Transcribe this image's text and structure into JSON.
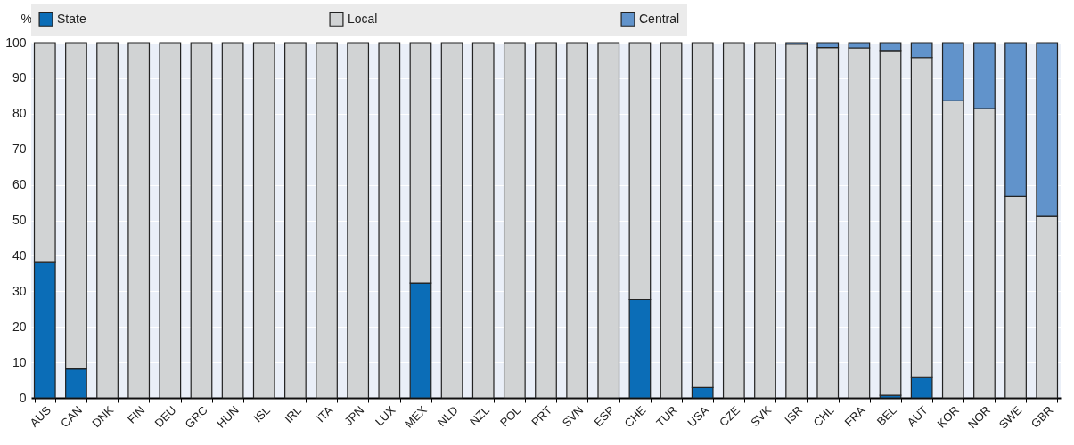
{
  "chart_data": {
    "type": "bar",
    "stacked": true,
    "ylabel": "%",
    "categories": [
      "AUS",
      "CAN",
      "DNK",
      "FIN",
      "DEU",
      "GRC",
      "HUN",
      "ISL",
      "IRL",
      "ITA",
      "JPN",
      "LUX",
      "MEX",
      "NLD",
      "NZL",
      "POL",
      "PRT",
      "SVN",
      "ESP",
      "CHE",
      "TUR",
      "USA",
      "CZE",
      "SVK",
      "ISR",
      "CHL",
      "FRA",
      "BEL",
      "AUT",
      "KOR",
      "NOR",
      "SWE",
      "GBR"
    ],
    "series": [
      {
        "name": "State",
        "color": "#0b6db7",
        "values": [
          38.3,
          8.1,
          null,
          null,
          null,
          null,
          null,
          null,
          null,
          null,
          null,
          null,
          32.3,
          null,
          null,
          null,
          null,
          null,
          null,
          27.7,
          null,
          2.9,
          null,
          null,
          null,
          null,
          null,
          0.7,
          5.7,
          null,
          null,
          null,
          null
        ]
      },
      {
        "name": "Local",
        "color": "#d1d3d4",
        "values": [
          61.7,
          91.9,
          100,
          100,
          100,
          100,
          100,
          100,
          100,
          100,
          100,
          100,
          67.7,
          100,
          100,
          100,
          100,
          100,
          100,
          72.3,
          100,
          97.1,
          100,
          100,
          99.6,
          98.6,
          98.5,
          97.1,
          90.1,
          83.6,
          81.4,
          56.8,
          51.1
        ]
      },
      {
        "name": "Central",
        "color": "#6193cb",
        "values": [
          null,
          null,
          null,
          null,
          null,
          null,
          null,
          null,
          null,
          null,
          null,
          null,
          null,
          null,
          null,
          null,
          null,
          null,
          null,
          null,
          null,
          null,
          null,
          null,
          0.4,
          1.4,
          1.5,
          2.2,
          4.2,
          16.4,
          18.6,
          43.2,
          48.9
        ]
      }
    ],
    "ylim": [
      0,
      100
    ],
    "yticks": [
      0,
      10,
      20,
      30,
      40,
      50,
      60,
      70,
      80,
      90,
      100
    ],
    "grid": "y",
    "legend": "top"
  }
}
